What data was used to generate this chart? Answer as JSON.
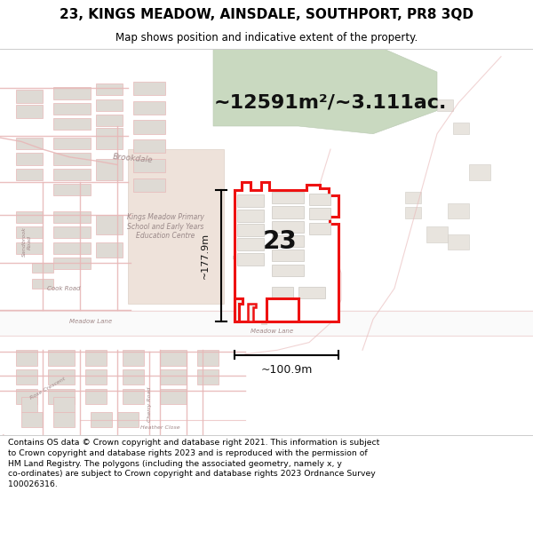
{
  "title_line1": "23, KINGS MEADOW, AINSDALE, SOUTHPORT, PR8 3QD",
  "title_line2": "Map shows position and indicative extent of the property.",
  "footer_lines": [
    "Contains OS data © Crown copyright and database right 2021. This information is subject",
    "to Crown copyright and database rights 2023 and is reproduced with the permission of",
    "HM Land Registry. The polygons (including the associated geometry, namely x, y",
    "co-ordinates) are subject to Crown copyright and database rights 2023 Ordnance Survey",
    "100026316."
  ],
  "area_text": "~12591m²/~3.111ac.",
  "label_number": "23",
  "dim_width": "~100.9m",
  "dim_height": "~177.9m",
  "map_bg": "#f2efeb",
  "title_bg": "#ffffff",
  "footer_bg": "#ffffff",
  "red_color": "#ee1111",
  "light_red": "#f0b0b0",
  "green_area": "#c9d9c0",
  "beige_area": "#ecddd4",
  "bldg_fill": "#dedad4",
  "bldg_stroke": "#c8c2bc",
  "road_light": "#f5f0eb",
  "road_stroke": "#e8b8b8"
}
